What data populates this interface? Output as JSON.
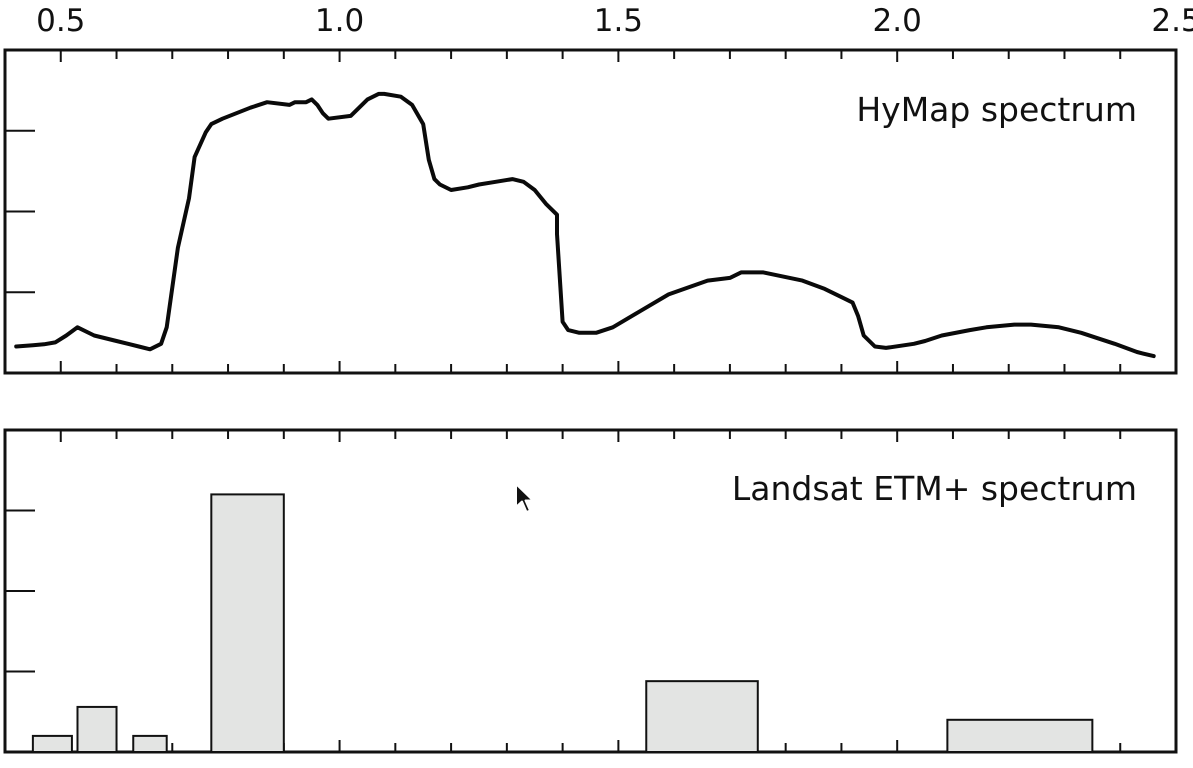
{
  "colors": {
    "axis": "#111111",
    "line": "#0a0a0a",
    "bar_fill": "#e3e4e3",
    "background": "#ffffff"
  },
  "panels": [
    {
      "label": "HyMap spectrum"
    },
    {
      "label": "Landsat ETM+ spectrum"
    }
  ],
  "chart_data": [
    {
      "type": "line",
      "title": "HyMap spectrum",
      "xlabel": "",
      "ylabel": "",
      "xlim": [
        0.4,
        2.5
      ],
      "ylim": [
        0,
        1
      ],
      "x_ticks": [
        "0.5",
        "1.0",
        "1.5",
        "2.0",
        "2.5"
      ],
      "grid": false,
      "series": [
        {
          "x": [
            0.42,
            0.45,
            0.47,
            0.49,
            0.51,
            0.53,
            0.56,
            0.6,
            0.64,
            0.66,
            0.68,
            0.69,
            0.71,
            0.73,
            0.74,
            0.76,
            0.77,
            0.79,
            0.84,
            0.87,
            0.91,
            0.92,
            0.94,
            0.95,
            0.96,
            0.97,
            0.98,
            1.02,
            1.04,
            1.05,
            1.07,
            1.08,
            1.11,
            1.13,
            1.15,
            1.16,
            1.17,
            1.18,
            1.2,
            1.23,
            1.25,
            1.28,
            1.31,
            1.33,
            1.35,
            1.37,
            1.38,
            1.39,
            1.39,
            1.4,
            1.41,
            1.43,
            1.46,
            1.49,
            1.54,
            1.59,
            1.66,
            1.7,
            1.72,
            1.76,
            1.83,
            1.87,
            1.9,
            1.92,
            1.93,
            1.94,
            1.96,
            1.98,
            2.03,
            2.05,
            2.08,
            2.13,
            2.16,
            2.21,
            2.24,
            2.29,
            2.33,
            2.36,
            2.39,
            2.43,
            2.44,
            2.46
          ],
          "y": [
            0.06,
            0.065,
            0.068,
            0.075,
            0.1,
            0.13,
            0.1,
            0.08,
            0.06,
            0.05,
            0.07,
            0.13,
            0.42,
            0.6,
            0.75,
            0.84,
            0.87,
            0.89,
            0.93,
            0.95,
            0.94,
            0.95,
            0.95,
            0.96,
            0.94,
            0.91,
            0.89,
            0.9,
            0.94,
            0.96,
            0.98,
            0.98,
            0.97,
            0.94,
            0.87,
            0.74,
            0.67,
            0.65,
            0.63,
            0.64,
            0.65,
            0.66,
            0.67,
            0.66,
            0.63,
            0.58,
            0.56,
            0.54,
            0.47,
            0.15,
            0.12,
            0.11,
            0.11,
            0.13,
            0.19,
            0.25,
            0.3,
            0.31,
            0.33,
            0.33,
            0.3,
            0.27,
            0.24,
            0.22,
            0.17,
            0.1,
            0.06,
            0.055,
            0.07,
            0.08,
            0.1,
            0.12,
            0.13,
            0.14,
            0.14,
            0.13,
            0.11,
            0.09,
            0.07,
            0.04,
            0.035,
            0.025
          ]
        }
      ]
    },
    {
      "type": "bar",
      "title": "Landsat ETM+ spectrum",
      "xlabel": "",
      "ylabel": "",
      "xlim": [
        0.4,
        2.5
      ],
      "ylim": [
        0,
        1
      ],
      "grid": false,
      "bands": [
        {
          "x_start": 0.45,
          "x_end": 0.52,
          "value": 0.05
        },
        {
          "x_start": 0.53,
          "x_end": 0.6,
          "value": 0.14
        },
        {
          "x_start": 0.63,
          "x_end": 0.69,
          "value": 0.05
        },
        {
          "x_start": 0.77,
          "x_end": 0.9,
          "value": 0.8
        },
        {
          "x_start": 1.55,
          "x_end": 1.75,
          "value": 0.22
        },
        {
          "x_start": 2.09,
          "x_end": 2.35,
          "value": 0.1
        }
      ]
    }
  ]
}
